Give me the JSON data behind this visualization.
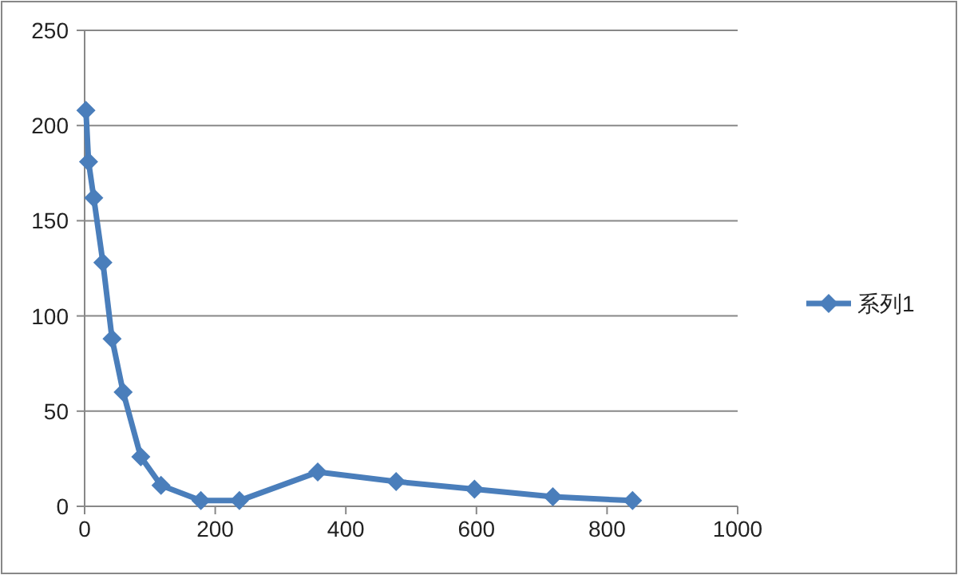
{
  "chart_data": {
    "type": "line",
    "line_style": "solid",
    "marker": "diamond",
    "grid": "y",
    "legend": "right",
    "xlim": [
      0,
      1000
    ],
    "xticks": [
      0,
      200,
      400,
      600,
      800,
      1000
    ],
    "ylim": [
      0,
      250
    ],
    "yticks": [
      0,
      50,
      100,
      150,
      200,
      250
    ],
    "series": [
      {
        "name": "系列1",
        "color": "#4a7ebb",
        "x": [
          2,
          6,
          14,
          28,
          42,
          59,
          86,
          117,
          178,
          237,
          357,
          477,
          597,
          717,
          839
        ],
        "values": [
          208,
          181,
          162,
          128,
          88,
          60,
          26,
          11,
          3,
          3,
          18,
          13,
          9,
          5,
          3
        ]
      }
    ]
  }
}
